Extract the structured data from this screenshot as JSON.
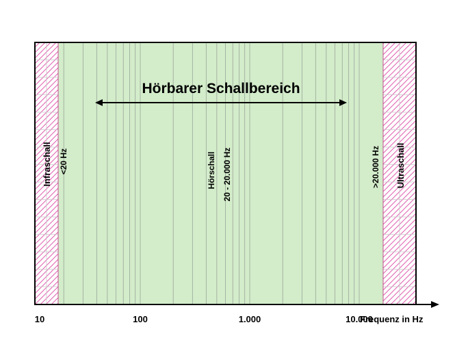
{
  "title": "Hörbarer Schallbereich",
  "regions": {
    "infra": {
      "name": "Infraschall",
      "range": "<20 Hz"
    },
    "audible": {
      "name": "Hörschall",
      "range": "20 - 20.000 Hz"
    },
    "ultra": {
      "name": "Ultraschall",
      "range": ">20.000 Hz"
    }
  },
  "axis": {
    "scale": "log",
    "tick_labels": [
      "10",
      "100",
      "1.000",
      "10.000"
    ],
    "tick_values": [
      10,
      100,
      1000,
      10000
    ],
    "unit_label": "Frequenz  in Hz"
  },
  "arrow_span_hz": [
    30,
    15000
  ],
  "colors": {
    "audible_fill": "#d3ecca",
    "hatch": "#e060b0",
    "grid": "#9aa59a",
    "frame": "#000000"
  }
}
